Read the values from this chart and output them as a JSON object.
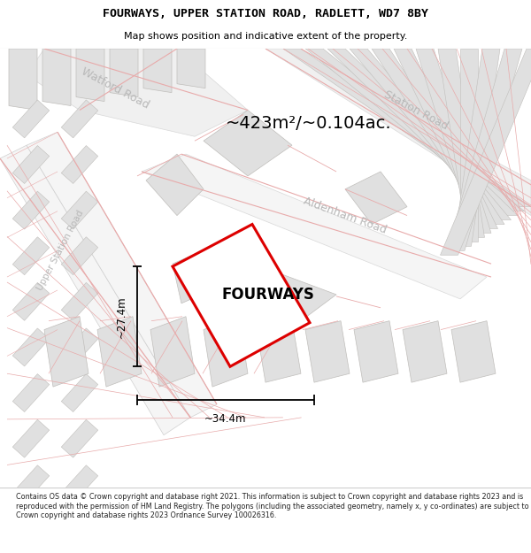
{
  "title": "FOURWAYS, UPPER STATION ROAD, RADLETT, WD7 8BY",
  "subtitle": "Map shows position and indicative extent of the property.",
  "footer": "Contains OS data © Crown copyright and database right 2021. This information is subject to Crown copyright and database rights 2023 and is reproduced with the permission of HM Land Registry. The polygons (including the associated geometry, namely x, y co-ordinates) are subject to Crown copyright and database rights 2023 Ordnance Survey 100026316.",
  "area_text": "~423m²/~0.104ac.",
  "property_label": "FOURWAYS",
  "dim_width": "~34.4m",
  "dim_height": "~27.4m",
  "map_bg": "#ffffff",
  "building_fill": "#e8e8e8",
  "building_outline": "#c8c4c0",
  "pink_color": "#e8a0a0",
  "property_outline": "#dd0000",
  "dim_line_color": "#000000",
  "road_label_color": "#b0b0b0",
  "title_color": "#000000",
  "footer_color": "#222222",
  "title_font": "monospace",
  "map_border_color": "#cccccc"
}
